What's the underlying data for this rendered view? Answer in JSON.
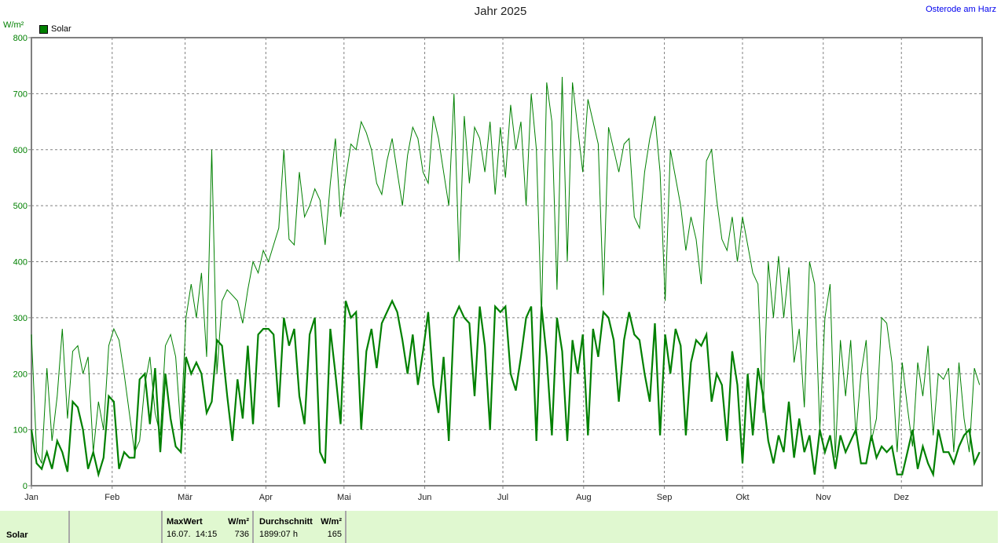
{
  "header": {
    "title": "Jahr 2025",
    "location": "Osterode am Harz",
    "unit": "W/m²"
  },
  "legend": {
    "label": "Solar",
    "color": "#008000"
  },
  "footer": {
    "series": "Solar",
    "max_label": "MaxWert",
    "max_unit": "W/m²",
    "max_time": "16.07.  14:15",
    "max_value": "736",
    "avg_label": "Durchschnitt",
    "avg_unit": "W/m²",
    "avg_hours": "1899:07 h",
    "avg_value": "165"
  },
  "chart_data": {
    "type": "line",
    "title": "Jahr 2025",
    "ylabel": "W/m²",
    "ylim": [
      0,
      800
    ],
    "yticks": [
      0,
      100,
      200,
      300,
      400,
      500,
      600,
      700,
      800
    ],
    "xticks": [
      "Jan",
      "Feb",
      "Mär",
      "Apr",
      "Mai",
      "Jun",
      "Jul",
      "Aug",
      "Sep",
      "Okt",
      "Nov",
      "Dez"
    ],
    "xticks_day": [
      0,
      31,
      59,
      90,
      120,
      151,
      181,
      212,
      243,
      273,
      304,
      334
    ],
    "days_in_year": 365,
    "grid": true,
    "legend_position": "top-left",
    "series": [
      {
        "name": "Solar max",
        "color": "#008000",
        "width": 1,
        "values": [
          270,
          60,
          40,
          210,
          80,
          160,
          280,
          120,
          240,
          250,
          200,
          230,
          60,
          150,
          100,
          250,
          280,
          260,
          200,
          130,
          60,
          80,
          180,
          230,
          130,
          90,
          250,
          270,
          230,
          100,
          300,
          360,
          300,
          380,
          230,
          600,
          200,
          330,
          350,
          340,
          330,
          290,
          350,
          400,
          380,
          420,
          400,
          430,
          460,
          600,
          440,
          430,
          560,
          480,
          500,
          530,
          510,
          430,
          540,
          620,
          480,
          550,
          610,
          600,
          650,
          630,
          600,
          540,
          520,
          580,
          620,
          560,
          500,
          590,
          640,
          620,
          560,
          540,
          660,
          620,
          560,
          500,
          700,
          400,
          660,
          540,
          640,
          620,
          560,
          650,
          520,
          640,
          550,
          680,
          600,
          650,
          500,
          700,
          600,
          300,
          720,
          650,
          350,
          730,
          400,
          720,
          640,
          560,
          690,
          650,
          610,
          340,
          640,
          600,
          560,
          610,
          620,
          480,
          460,
          560,
          620,
          660,
          560,
          330,
          600,
          550,
          500,
          420,
          480,
          440,
          360,
          580,
          600,
          510,
          440,
          420,
          480,
          400,
          480,
          430,
          380,
          360,
          130,
          400,
          300,
          410,
          300,
          390,
          220,
          280,
          140,
          400,
          360,
          100,
          300,
          360,
          50,
          260,
          160,
          260,
          90,
          200,
          260,
          80,
          120,
          300,
          290,
          220,
          60,
          220,
          140,
          70,
          220,
          160,
          250,
          90,
          200,
          190,
          210,
          60,
          220,
          120,
          60,
          210,
          180
        ]
      },
      {
        "name": "Solar",
        "color": "#008000",
        "width": 2.2,
        "values": [
          100,
          40,
          30,
          60,
          30,
          80,
          60,
          25,
          150,
          140,
          100,
          30,
          60,
          20,
          50,
          160,
          150,
          30,
          60,
          50,
          50,
          190,
          200,
          110,
          210,
          60,
          200,
          120,
          70,
          60,
          230,
          200,
          220,
          200,
          130,
          150,
          260,
          250,
          160,
          80,
          190,
          120,
          250,
          110,
          270,
          280,
          280,
          270,
          140,
          300,
          250,
          280,
          160,
          110,
          270,
          300,
          60,
          40,
          280,
          200,
          110,
          330,
          300,
          310,
          100,
          240,
          280,
          210,
          290,
          310,
          330,
          310,
          260,
          200,
          270,
          180,
          240,
          310,
          180,
          130,
          230,
          80,
          300,
          320,
          300,
          290,
          160,
          320,
          250,
          100,
          320,
          310,
          320,
          200,
          170,
          230,
          300,
          320,
          80,
          320,
          230,
          90,
          300,
          240,
          80,
          260,
          200,
          270,
          90,
          280,
          230,
          310,
          300,
          260,
          150,
          260,
          310,
          270,
          260,
          200,
          150,
          290,
          90,
          270,
          200,
          280,
          250,
          90,
          220,
          260,
          250,
          270,
          150,
          200,
          180,
          80,
          240,
          180,
          40,
          200,
          90,
          210,
          160,
          80,
          40,
          90,
          60,
          150,
          50,
          120,
          60,
          90,
          20,
          100,
          60,
          90,
          30,
          90,
          60,
          80,
          100,
          40,
          40,
          90,
          50,
          70,
          60,
          70,
          20,
          20,
          60,
          100,
          30,
          70,
          40,
          20,
          100,
          60,
          60,
          40,
          70,
          90,
          100,
          40,
          60
        ]
      }
    ]
  }
}
